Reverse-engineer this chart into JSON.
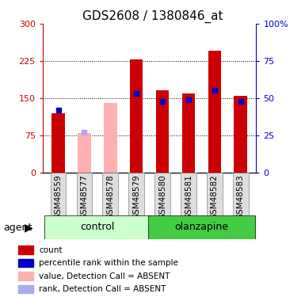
{
  "title": "GDS2608 / 1380846_at",
  "samples": [
    "GSM48559",
    "GSM48577",
    "GSM48578",
    "GSM48579",
    "GSM48580",
    "GSM48581",
    "GSM48582",
    "GSM48583"
  ],
  "red_values": [
    120,
    0,
    0,
    228,
    165,
    160,
    245,
    154
  ],
  "pink_values": [
    0,
    80,
    140,
    0,
    0,
    0,
    0,
    0
  ],
  "blue_dots": [
    42,
    0,
    0,
    53,
    48,
    49,
    55,
    48
  ],
  "light_blue_dots": [
    0,
    27,
    0,
    0,
    0,
    0,
    0,
    0
  ],
  "absent": [
    false,
    true,
    true,
    false,
    false,
    false,
    false,
    false
  ],
  "groups": {
    "control": [
      0,
      1,
      2,
      3
    ],
    "olanzapine": [
      4,
      5,
      6,
      7
    ]
  },
  "ylim_left": [
    0,
    300
  ],
  "ylim_right": [
    0,
    100
  ],
  "yticks_left": [
    0,
    75,
    150,
    225,
    300
  ],
  "ytick_labels_left": [
    "0",
    "75",
    "150",
    "225",
    "300"
  ],
  "yticks_right": [
    0,
    25,
    50,
    75,
    100
  ],
  "ytick_labels_right": [
    "0",
    "25",
    "50",
    "75",
    "100%"
  ],
  "red_color": "#cc0000",
  "pink_color": "#ffb0b0",
  "blue_color": "#0000cc",
  "light_blue_color": "#aaaaee",
  "control_bg_light": "#ccffcc",
  "olanzapine_bg": "#44cc44",
  "bar_width": 0.5,
  "legend_items": [
    [
      "#cc0000",
      "count"
    ],
    [
      "#0000cc",
      "percentile rank within the sample"
    ],
    [
      "#ffb0b0",
      "value, Detection Call = ABSENT"
    ],
    [
      "#aaaaee",
      "rank, Detection Call = ABSENT"
    ]
  ]
}
